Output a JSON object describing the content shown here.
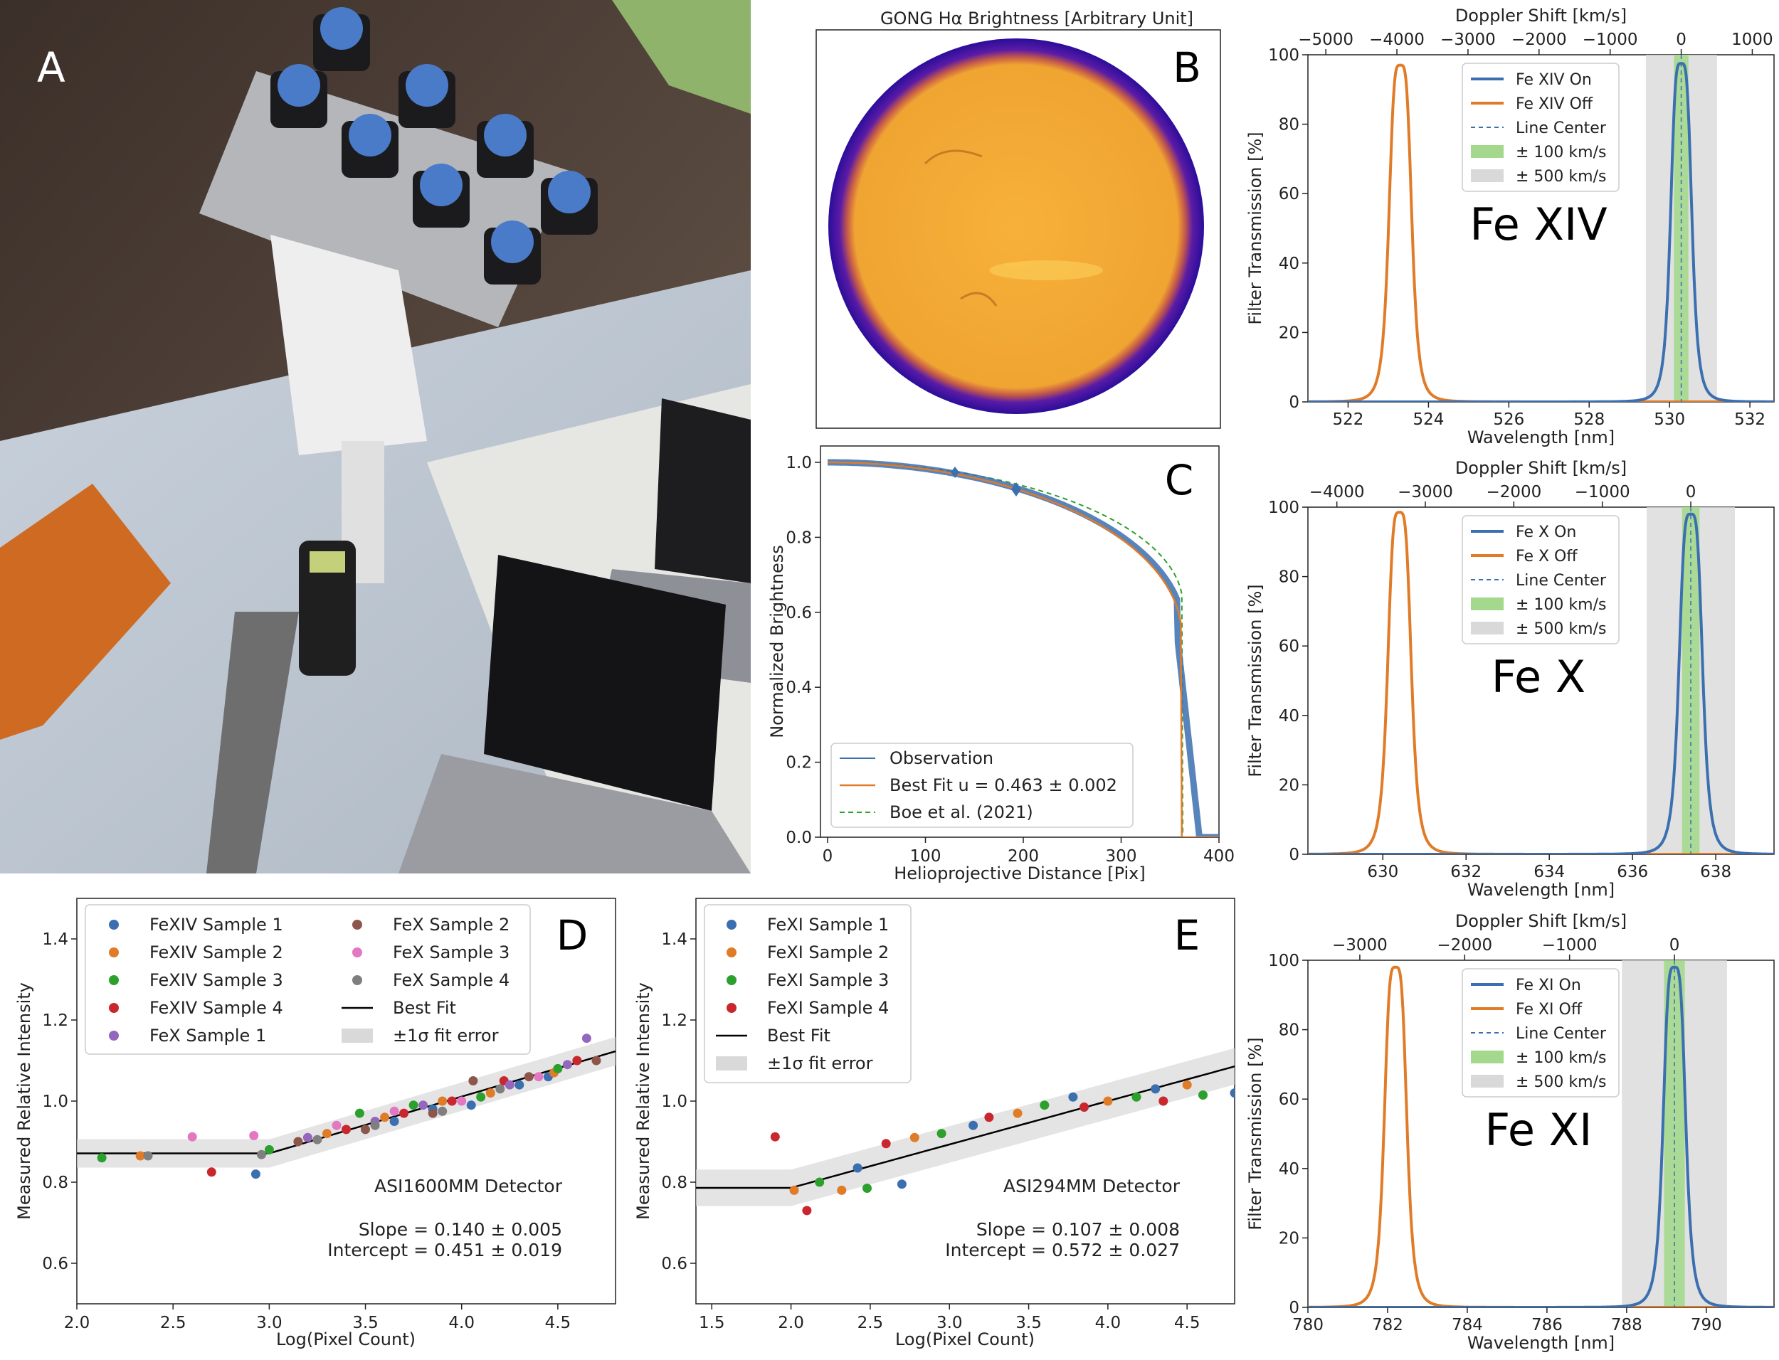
{
  "panels": {
    "A": {
      "letter": "A"
    },
    "B": {
      "letter": "B",
      "title": "GONG Hα Brightness [Arbitrary Unit]"
    },
    "C": {
      "letter": "C"
    },
    "D": {
      "letter": "D"
    },
    "E": {
      "letter": "E"
    }
  },
  "colors": {
    "blue": "#3b6fb0",
    "orange": "#e07b28",
    "green": "#2ca02c",
    "red": "#c8282d",
    "purple": "#9467bd",
    "brown": "#8c564b",
    "pink": "#e377c2",
    "gray": "#7f7f7f",
    "light_green": "#a4d98d",
    "light_gray": "#d9d9d9"
  },
  "chart_data": [
    {
      "id": "C",
      "type": "line",
      "xlabel": "Helioprojective Distance [Pix]",
      "ylabel": "Normalized Brightness",
      "xlim": [
        0,
        400
      ],
      "ylim": [
        0,
        1.05
      ],
      "xticks": [
        "0",
        "100",
        "200",
        "300",
        "400"
      ],
      "yticks": [
        "0.0",
        "0.2",
        "0.4",
        "0.6",
        "0.8",
        "1.0"
      ],
      "legend": [
        {
          "label": "Observation",
          "style": "solid-blue-thin"
        },
        {
          "label": "Best Fit u = 0.463 ± 0.002",
          "style": "solid-orange"
        },
        {
          "label": "Boe et al. (2021)",
          "style": "dashed-green"
        }
      ],
      "limb_radius": 362,
      "limb_darkening_u": 0.463
    },
    {
      "id": "D",
      "type": "scatter",
      "xlabel": "Log(Pixel Count)",
      "ylabel": "Measured Relative Intensity",
      "xlim": [
        2.0,
        4.8
      ],
      "ylim": [
        0.5,
        1.5
      ],
      "xticks": [
        "2.0",
        "2.5",
        "3.0",
        "3.5",
        "4.0",
        "4.5"
      ],
      "yticks": [
        "0.6",
        "0.8",
        "1.0",
        "1.2",
        "1.4"
      ],
      "detector": "ASI1600MM Detector",
      "slope_text": "Slope = 0.140 ± 0.005",
      "intercept_text": "Intercept = 0.451 ± 0.019",
      "fit": {
        "knee": 3.0,
        "flat": 0.871,
        "slope": 0.14,
        "intercept": 0.451,
        "band": 0.035
      },
      "legend": [
        "FeXIV Sample 1",
        "FeXIV Sample 2",
        "FeXIV Sample 3",
        "FeXIV Sample 4",
        "FeX Sample 1",
        "FeX Sample 2",
        "FeX Sample 3",
        "FeX Sample 4",
        "Best Fit",
        "±1σ fit error"
      ],
      "series": [
        {
          "name": "FeXIV Sample 1",
          "points": [
            [
              2.93,
              0.82
            ],
            [
              3.65,
              0.95
            ],
            [
              3.85,
              0.98
            ],
            [
              4.05,
              0.99
            ],
            [
              4.3,
              1.04
            ],
            [
              4.45,
              1.06
            ]
          ]
        },
        {
          "name": "FeXIV Sample 2",
          "points": [
            [
              2.33,
              0.865
            ],
            [
              3.3,
              0.92
            ],
            [
              3.6,
              0.96
            ],
            [
              3.9,
              1.0
            ],
            [
              4.15,
              1.02
            ],
            [
              4.48,
              1.07
            ]
          ]
        },
        {
          "name": "FeXIV Sample 3",
          "points": [
            [
              2.13,
              0.86
            ],
            [
              3.0,
              0.88
            ],
            [
              3.47,
              0.97
            ],
            [
              3.75,
              0.99
            ],
            [
              4.1,
              1.01
            ],
            [
              4.5,
              1.08
            ]
          ]
        },
        {
          "name": "FeXIV Sample 4",
          "points": [
            [
              2.7,
              0.825
            ],
            [
              3.4,
              0.93
            ],
            [
              3.7,
              0.97
            ],
            [
              3.95,
              1.0
            ],
            [
              4.22,
              1.05
            ],
            [
              4.6,
              1.1
            ]
          ]
        },
        {
          "name": "FeX Sample 1",
          "points": [
            [
              3.2,
              0.91
            ],
            [
              3.55,
              0.95
            ],
            [
              3.8,
              0.99
            ],
            [
              4.25,
              1.04
            ],
            [
              4.55,
              1.09
            ],
            [
              4.65,
              1.155
            ]
          ]
        },
        {
          "name": "FeX Sample 2",
          "points": [
            [
              3.15,
              0.9
            ],
            [
              3.5,
              0.93
            ],
            [
              3.85,
              0.97
            ],
            [
              4.06,
              1.05
            ],
            [
              4.35,
              1.06
            ],
            [
              4.7,
              1.1
            ]
          ]
        },
        {
          "name": "FeX Sample 3",
          "points": [
            [
              2.6,
              0.912
            ],
            [
              2.92,
              0.915
            ],
            [
              3.35,
              0.94
            ],
            [
              3.65,
              0.975
            ],
            [
              4.0,
              1.0
            ],
            [
              4.4,
              1.06
            ]
          ]
        },
        {
          "name": "FeX Sample 4",
          "points": [
            [
              2.37,
              0.865
            ],
            [
              2.96,
              0.868
            ],
            [
              3.25,
              0.905
            ],
            [
              3.55,
              0.94
            ],
            [
              3.9,
              0.975
            ],
            [
              4.2,
              1.03
            ]
          ]
        }
      ]
    },
    {
      "id": "E",
      "type": "scatter",
      "xlabel": "Log(Pixel Count)",
      "ylabel": "Measured Relative Intensity",
      "xlim": [
        1.4,
        4.8
      ],
      "ylim": [
        0.5,
        1.5
      ],
      "xticks": [
        "1.5",
        "2.0",
        "2.5",
        "3.0",
        "3.5",
        "4.0",
        "4.5"
      ],
      "yticks": [
        "0.6",
        "0.8",
        "1.0",
        "1.2",
        "1.4"
      ],
      "detector": "ASI294MM Detector",
      "slope_text": "Slope = 0.107 ± 0.008",
      "intercept_text": "Intercept = 0.572 ± 0.027",
      "fit": {
        "knee": 2.0,
        "flat": 0.786,
        "slope": 0.107,
        "intercept": 0.572,
        "band": 0.045
      },
      "legend": [
        "FeXI Sample 1",
        "FeXI Sample 2",
        "FeXI Sample 3",
        "FeXI Sample 4",
        "Best Fit",
        "±1σ fit error"
      ],
      "series": [
        {
          "name": "FeXI Sample 1",
          "points": [
            [
              2.42,
              0.835
            ],
            [
              2.7,
              0.795
            ],
            [
              3.15,
              0.94
            ],
            [
              3.78,
              1.01
            ],
            [
              4.3,
              1.03
            ],
            [
              4.8,
              1.02
            ]
          ]
        },
        {
          "name": "FeXI Sample 2",
          "points": [
            [
              2.02,
              0.78
            ],
            [
              2.32,
              0.78
            ],
            [
              2.78,
              0.91
            ],
            [
              3.43,
              0.97
            ],
            [
              4.0,
              1.0
            ],
            [
              4.5,
              1.04
            ]
          ]
        },
        {
          "name": "FeXI Sample 3",
          "points": [
            [
              2.18,
              0.8
            ],
            [
              2.48,
              0.785
            ],
            [
              2.95,
              0.92
            ],
            [
              3.6,
              0.99
            ],
            [
              4.18,
              1.01
            ],
            [
              4.6,
              1.015
            ]
          ]
        },
        {
          "name": "FeXI Sample 4",
          "points": [
            [
              1.9,
              0.912
            ],
            [
              2.1,
              0.73
            ],
            [
              2.6,
              0.895
            ],
            [
              3.25,
              0.96
            ],
            [
              3.85,
              0.985
            ],
            [
              4.35,
              1.0
            ]
          ]
        }
      ]
    },
    {
      "id": "FeXIV",
      "type": "line",
      "label": "Fe XIV",
      "xlabel": "Wavelength [nm]",
      "ylabel": "Filter Transmission [%]",
      "top_xlabel": "Doppler Shift [km/s]",
      "xlim": [
        521,
        532.6
      ],
      "ylim": [
        0,
        100
      ],
      "xticks": [
        522,
        524,
        526,
        528,
        530,
        532
      ],
      "yticks": [
        0,
        20,
        40,
        60,
        80,
        100
      ],
      "top_ticks": [
        "−5000",
        "−4000",
        "−3000",
        "−2000",
        "−1000",
        "0",
        "1000"
      ],
      "line_center": 530.29,
      "on_peak": [
        530.29,
        97.5,
        0.28
      ],
      "off_peak": [
        523.3,
        97,
        0.3
      ],
      "band_100_kms": [
        530.11,
        530.47
      ],
      "band_500_kms": [
        529.41,
        531.18
      ],
      "legend": [
        "Fe XIV On",
        "Fe XIV Off",
        "Line Center",
        "± 100 km/s",
        "± 500 km/s"
      ]
    },
    {
      "id": "FeX",
      "type": "line",
      "label": "Fe X",
      "xlabel": "Wavelength [nm]",
      "ylabel": "Filter Transmission [%]",
      "top_xlabel": "Doppler Shift [km/s]",
      "xlim": [
        628.2,
        639.4
      ],
      "ylim": [
        0,
        100
      ],
      "xticks": [
        630,
        632,
        634,
        636,
        638
      ],
      "yticks": [
        0,
        20,
        40,
        60,
        80,
        100
      ],
      "top_ticks": [
        "−4000",
        "−3000",
        "−2000",
        "−1000",
        "0"
      ],
      "line_center": 637.4,
      "on_peak": [
        637.4,
        98,
        0.3
      ],
      "off_peak": [
        630.4,
        98.5,
        0.3
      ],
      "band_100_kms": [
        637.19,
        637.61
      ],
      "band_500_kms": [
        636.34,
        638.46
      ],
      "legend": [
        "Fe X On",
        "Fe X Off",
        "Line Center",
        "± 100 km/s",
        "± 500 km/s"
      ]
    },
    {
      "id": "FeXI",
      "type": "line",
      "label": "Fe XI",
      "xlabel": "Wavelength [nm]",
      "ylabel": "Filter Transmission [%]",
      "top_xlabel": "Doppler Shift [km/s]",
      "xlim": [
        780,
        791.7
      ],
      "ylim": [
        0,
        100
      ],
      "xticks": [
        780,
        782,
        784,
        786,
        788,
        790
      ],
      "yticks": [
        0,
        20,
        40,
        60,
        80,
        100
      ],
      "top_ticks": [
        "−3000",
        "−2000",
        "−1000",
        "0"
      ],
      "line_center": 789.2,
      "on_peak": [
        789.2,
        98,
        0.3
      ],
      "off_peak": [
        782.2,
        98,
        0.3
      ],
      "band_100_kms": [
        788.94,
        789.46
      ],
      "band_500_kms": [
        787.88,
        790.52
      ],
      "legend": [
        "Fe XI On",
        "Fe XI Off",
        "Line Center",
        "± 100 km/s",
        "± 500 km/s"
      ]
    }
  ]
}
